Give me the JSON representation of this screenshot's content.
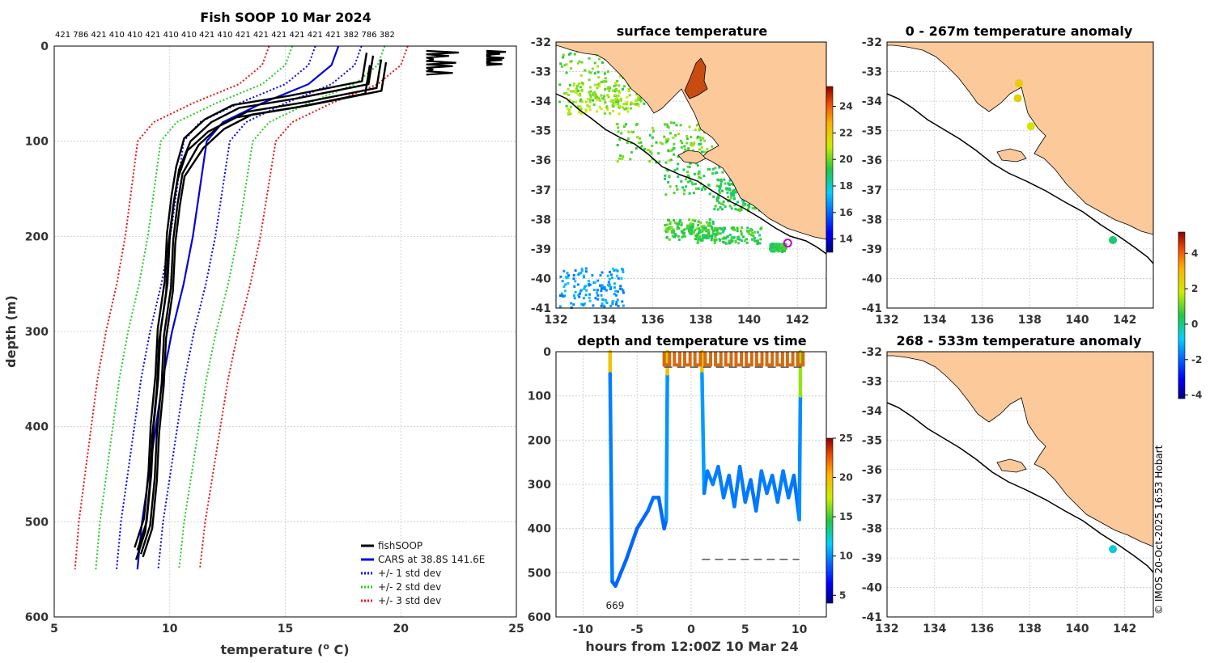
{
  "colors": {
    "land": "#fbc99a",
    "cars": "#0000dd",
    "fish": "#000000",
    "std1": "#0000ff",
    "std2": "#22cc22",
    "std3": "#ee1111",
    "marker": "#cc00cc"
  },
  "chart_data": [
    {
      "id": "profile",
      "type": "line",
      "title": "Fish SOOP 10 Mar 2024",
      "xlabel": "temperature (",
      "xlabel_sup": "o",
      "xlabel_end": " C)",
      "ylabel": "depth (m)",
      "xlim": [
        5,
        25
      ],
      "ylim": [
        600,
        0
      ],
      "xticks": [
        5,
        10,
        15,
        20,
        25
      ],
      "yticks": [
        0,
        100,
        200,
        300,
        400,
        500,
        600
      ],
      "top_labels": "421 786 421 410 410 421 410 410 421 410 421 421 421 421 421 421 382 786 382",
      "legend": [
        "fishSOOP",
        "CARS at 38.8S 141.6E",
        "+/- 1 std dev",
        "+/- 2 std dev",
        "+/- 3 std dev"
      ],
      "series": [
        {
          "name": "CARS at 38.8S 141.6E",
          "depth": [
            0,
            20,
            40,
            60,
            80,
            100,
            150,
            200,
            250,
            300,
            350,
            400,
            450,
            500,
            550
          ],
          "temp": [
            17.3,
            17.0,
            16.0,
            14.0,
            12.3,
            11.6,
            11.3,
            11.0,
            10.6,
            10.1,
            9.7,
            9.4,
            9.1,
            8.8,
            8.6
          ]
        },
        {
          "name": "+/- 1 std dev",
          "offset": 1.0
        },
        {
          "name": "+/- 2 std dev",
          "offset": 2.0
        },
        {
          "name": "+/- 3 std dev",
          "offset": 3.0
        },
        {
          "name": "fishSOOP",
          "depth": [
            10,
            40,
            55,
            65,
            80,
            100,
            130,
            160,
            200,
            250,
            300,
            350,
            400,
            450,
            500,
            530
          ],
          "temp": [
            18.8,
            18.6,
            15.5,
            13.0,
            11.8,
            10.9,
            10.4,
            10.2,
            10.0,
            9.9,
            9.6,
            9.5,
            9.3,
            9.2,
            9.0,
            8.6
          ]
        }
      ]
    },
    {
      "id": "sst",
      "type": "heatmap",
      "title": "surface temperature",
      "xlim": [
        132,
        143.2
      ],
      "ylim": [
        -41,
        -32
      ],
      "xticks": [
        132,
        134,
        136,
        138,
        140,
        142
      ],
      "yticks": [
        -32,
        -33,
        -34,
        -35,
        -36,
        -37,
        -38,
        -39,
        -40,
        -41
      ],
      "colorbar": {
        "ticks": [
          14,
          16,
          18,
          20,
          22,
          24
        ],
        "range": [
          13,
          25.5
        ]
      },
      "marker": {
        "lon": 141.6,
        "lat": -38.8
      }
    },
    {
      "id": "timeseries",
      "type": "line",
      "title": "depth and temperature vs time",
      "xlabel": "hours from 12:00Z 10 Mar 24",
      "xlim": [
        -12.5,
        12.5
      ],
      "ylim": [
        600,
        0
      ],
      "xticks": [
        -10,
        -5,
        0,
        5,
        10
      ],
      "yticks": [
        0,
        100,
        200,
        300,
        400,
        500,
        600
      ],
      "annotation": "669",
      "colorbar": {
        "ticks": [
          5,
          10,
          15,
          20,
          25
        ],
        "range": [
          4,
          25
        ]
      },
      "dashed_depth": 470,
      "dives": [
        {
          "t": [
            -7.5,
            -7.5,
            -7.3,
            -7.0,
            -6.5,
            -6.0,
            -5.0,
            -4.0,
            -3.5,
            -3.0,
            -2.5,
            -2.3,
            -2.2,
            -2.2
          ],
          "d": [
            0,
            50,
            520,
            530,
            500,
            470,
            400,
            360,
            330,
            330,
            400,
            380,
            50,
            0
          ]
        },
        {
          "t": [
            1.0,
            1.0,
            1.2,
            1.5,
            2.0,
            2.5,
            3.0,
            3.5,
            4.0,
            4.5,
            5.0,
            5.5,
            6.0,
            6.5,
            7.0,
            7.5,
            8.0,
            8.5,
            9.0,
            9.5,
            10.0,
            10.1,
            10.1
          ],
          "d": [
            0,
            50,
            320,
            270,
            300,
            260,
            330,
            280,
            350,
            260,
            340,
            290,
            360,
            270,
            320,
            280,
            340,
            270,
            330,
            280,
            380,
            100,
            0
          ]
        }
      ]
    },
    {
      "id": "anom1",
      "type": "scatter",
      "title": "0 - 267m temperature anomaly",
      "xlim": [
        132,
        143.2
      ],
      "ylim": [
        -41,
        -32
      ],
      "xticks": [
        132,
        134,
        136,
        138,
        140,
        142
      ],
      "yticks": [
        -32,
        -33,
        -34,
        -35,
        -36,
        -37,
        -38,
        -39,
        -40,
        -41
      ],
      "points": [
        {
          "lon": 137.55,
          "lat": -33.4,
          "anom": 2.5
        },
        {
          "lon": 137.5,
          "lat": -33.9,
          "anom": 2.5
        },
        {
          "lon": 138.05,
          "lat": -34.85,
          "anom": 2.0
        },
        {
          "lon": 141.5,
          "lat": -38.7,
          "anom": 0.2
        }
      ]
    },
    {
      "id": "anom2",
      "type": "scatter",
      "title": "268 - 533m temperature anomaly",
      "xlim": [
        132,
        143.2
      ],
      "ylim": [
        -41,
        -32
      ],
      "xticks": [
        132,
        134,
        136,
        138,
        140,
        142
      ],
      "yticks": [
        -32,
        -33,
        -34,
        -35,
        -36,
        -37,
        -38,
        -39,
        -40,
        -41
      ],
      "points": [
        {
          "lon": 141.5,
          "lat": -38.7,
          "anom": -0.5
        }
      ],
      "colorbar": {
        "ticks": [
          4,
          2,
          0,
          -2,
          -4
        ],
        "range": [
          -4.2,
          5.2
        ]
      }
    }
  ],
  "credit": "© IMOS 20-Oct-2025 16:53 Hobart"
}
